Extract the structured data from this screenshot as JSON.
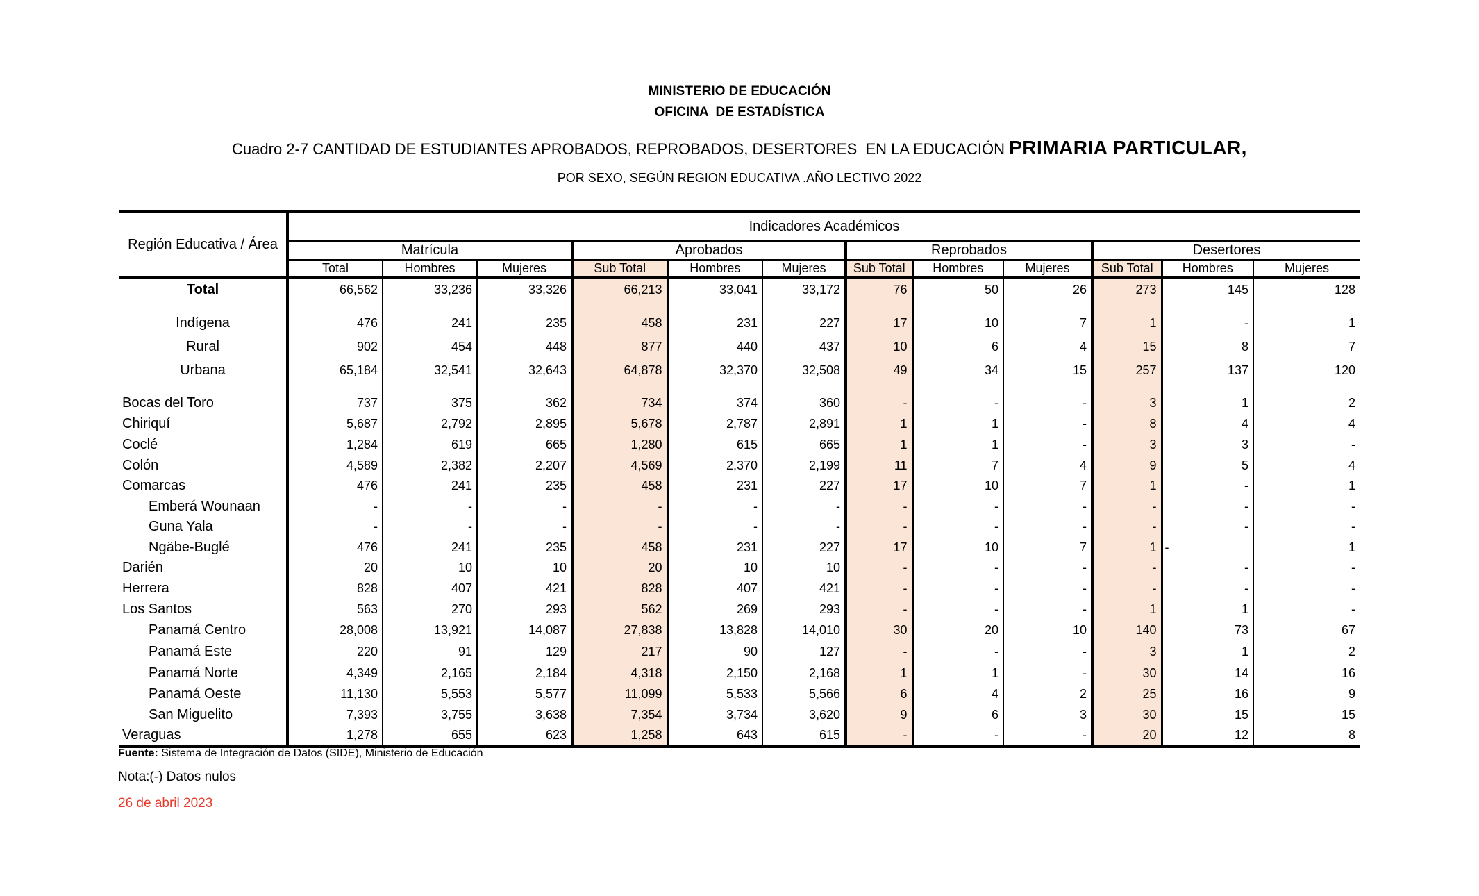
{
  "heading": {
    "org_line1": "MINISTERIO DE EDUCACIÓN",
    "org_line2": "OFICINA  DE ESTADÍSTICA",
    "title_prefix": "Cuadro 2-7 CANTIDAD DE ESTUDIANTES APROBADOS, REPROBADOS, DESERTORES  EN LA EDUCACIÓN ",
    "title_emphasis": "PRIMARIA PARTICULAR,",
    "subtitle": "POR SEXO, SEGÚN REGION EDUCATIVA .AÑO LECTIVO 2022"
  },
  "table": {
    "corner_label": "Región Educativa / Área",
    "span_header": "Indicadores Académicos",
    "groups": [
      "Matrícula",
      "Aprobados",
      "Reprobados",
      "Desertores"
    ],
    "columns": [
      "Total",
      "Hombres",
      "Mujeres",
      "Sub Total",
      "Hombres",
      "Mujeres",
      "Sub Total",
      "Hombres",
      "Mujeres",
      "Sub Total",
      "Hombres",
      "Mujeres"
    ],
    "subtotal_column_indexes": [
      3,
      6,
      9
    ],
    "null_symbol": "-",
    "rows": [
      {
        "label": "Total",
        "type": "total",
        "values": [
          "66,562",
          "33,236",
          "33,326",
          "66,213",
          "33,041",
          "33,172",
          "76",
          "50",
          "26",
          "273",
          "145",
          "128"
        ]
      },
      {
        "type": "spacer"
      },
      {
        "label": "Indígena",
        "type": "area",
        "values": [
          "476",
          "241",
          "235",
          "458",
          "231",
          "227",
          "17",
          "10",
          "7",
          "1",
          "-",
          "1"
        ]
      },
      {
        "label": "Rural",
        "type": "area",
        "values": [
          "902",
          "454",
          "448",
          "877",
          "440",
          "437",
          "10",
          "6",
          "4",
          "15",
          "8",
          "7"
        ]
      },
      {
        "label": "Urbana",
        "type": "area",
        "values": [
          "65,184",
          "32,541",
          "32,643",
          "64,878",
          "32,370",
          "32,508",
          "49",
          "34",
          "15",
          "257",
          "137",
          "120"
        ]
      },
      {
        "type": "spacer"
      },
      {
        "label": "Bocas del Toro",
        "type": "region",
        "values": [
          "737",
          "375",
          "362",
          "734",
          "374",
          "360",
          "-",
          "-",
          "-",
          "3",
          "1",
          "2"
        ]
      },
      {
        "label": "Chiriquí",
        "type": "region",
        "values": [
          "5,687",
          "2,792",
          "2,895",
          "5,678",
          "2,787",
          "2,891",
          "1",
          "1",
          "-",
          "8",
          "4",
          "4"
        ]
      },
      {
        "label": "Coclé",
        "type": "region",
        "values": [
          "1,284",
          "619",
          "665",
          "1,280",
          "615",
          "665",
          "1",
          "1",
          "-",
          "3",
          "3",
          "-"
        ]
      },
      {
        "label": "Colón",
        "type": "region",
        "values": [
          "4,589",
          "2,382",
          "2,207",
          "4,569",
          "2,370",
          "2,199",
          "11",
          "7",
          "4",
          "9",
          "5",
          "4"
        ]
      },
      {
        "label": "Comarcas",
        "type": "region",
        "values": [
          "476",
          "241",
          "235",
          "458",
          "231",
          "227",
          "17",
          "10",
          "7",
          "1",
          "-",
          "1"
        ]
      },
      {
        "label": "Emberá Wounaan",
        "type": "sub",
        "values": [
          "-",
          "-",
          "-",
          "-",
          "-",
          "-",
          "-",
          "-",
          "-",
          "-",
          "-",
          "-"
        ]
      },
      {
        "label": "Guna Yala",
        "type": "sub",
        "values": [
          "-",
          "-",
          "-",
          "-",
          "-",
          "-",
          "-",
          "-",
          "-",
          "-",
          "-",
          "-"
        ]
      },
      {
        "label": "Ngäbe-Buglé",
        "type": "sub",
        "values": [
          "476",
          "241",
          "235",
          "458",
          "231",
          "227",
          "17",
          "10",
          "7",
          "1",
          "-",
          "1"
        ],
        "left_dash_cols": [
          10
        ]
      },
      {
        "label": "Darién",
        "type": "region",
        "values": [
          "20",
          "10",
          "10",
          "20",
          "10",
          "10",
          "-",
          "-",
          "-",
          "-",
          "-",
          "-"
        ]
      },
      {
        "label": "Herrera",
        "type": "region",
        "values": [
          "828",
          "407",
          "421",
          "828",
          "407",
          "421",
          "-",
          "-",
          "-",
          "-",
          "-",
          "-"
        ]
      },
      {
        "label": "Los Santos",
        "type": "region",
        "values": [
          "563",
          "270",
          "293",
          "562",
          "269",
          "293",
          "-",
          "-",
          "-",
          "1",
          "1",
          "-"
        ]
      },
      {
        "label": "Panamá Centro",
        "type": "sub",
        "values": [
          "28,008",
          "13,921",
          "14,087",
          "27,838",
          "13,828",
          "14,010",
          "30",
          "20",
          "10",
          "140",
          "73",
          "67"
        ]
      },
      {
        "label": "Panamá Este",
        "type": "sub",
        "values": [
          "220",
          "91",
          "129",
          "217",
          "90",
          "127",
          "-",
          "-",
          "-",
          "3",
          "1",
          "2"
        ]
      },
      {
        "label": "Panamá Norte",
        "type": "sub",
        "values": [
          "4,349",
          "2,165",
          "2,184",
          "4,318",
          "2,150",
          "2,168",
          "1",
          "1",
          "-",
          "30",
          "14",
          "16"
        ]
      },
      {
        "label": "Panamá Oeste",
        "type": "sub",
        "values": [
          "11,130",
          "5,553",
          "5,577",
          "11,099",
          "5,533",
          "5,566",
          "6",
          "4",
          "2",
          "25",
          "16",
          "9"
        ]
      },
      {
        "label": "San Miguelito",
        "type": "sub",
        "values": [
          "7,393",
          "3,755",
          "3,638",
          "7,354",
          "3,734",
          "3,620",
          "9",
          "6",
          "3",
          "30",
          "15",
          "15"
        ]
      },
      {
        "label": "Veraguas",
        "type": "region",
        "values": [
          "1,278",
          "655",
          "623",
          "1,258",
          "643",
          "615",
          "-",
          "-",
          "-",
          "20",
          "12",
          "8"
        ]
      }
    ]
  },
  "footer": {
    "source_label": "Fuente:",
    "source_text": " Sistema de Integración de Datos (SIDE), Ministerio de Educación",
    "note": "Nota:(-) Datos nulos",
    "date": "26 de abril 2023"
  },
  "colors": {
    "subtotal_bg": "#fbe5d6",
    "date_red": "#e8392b"
  }
}
